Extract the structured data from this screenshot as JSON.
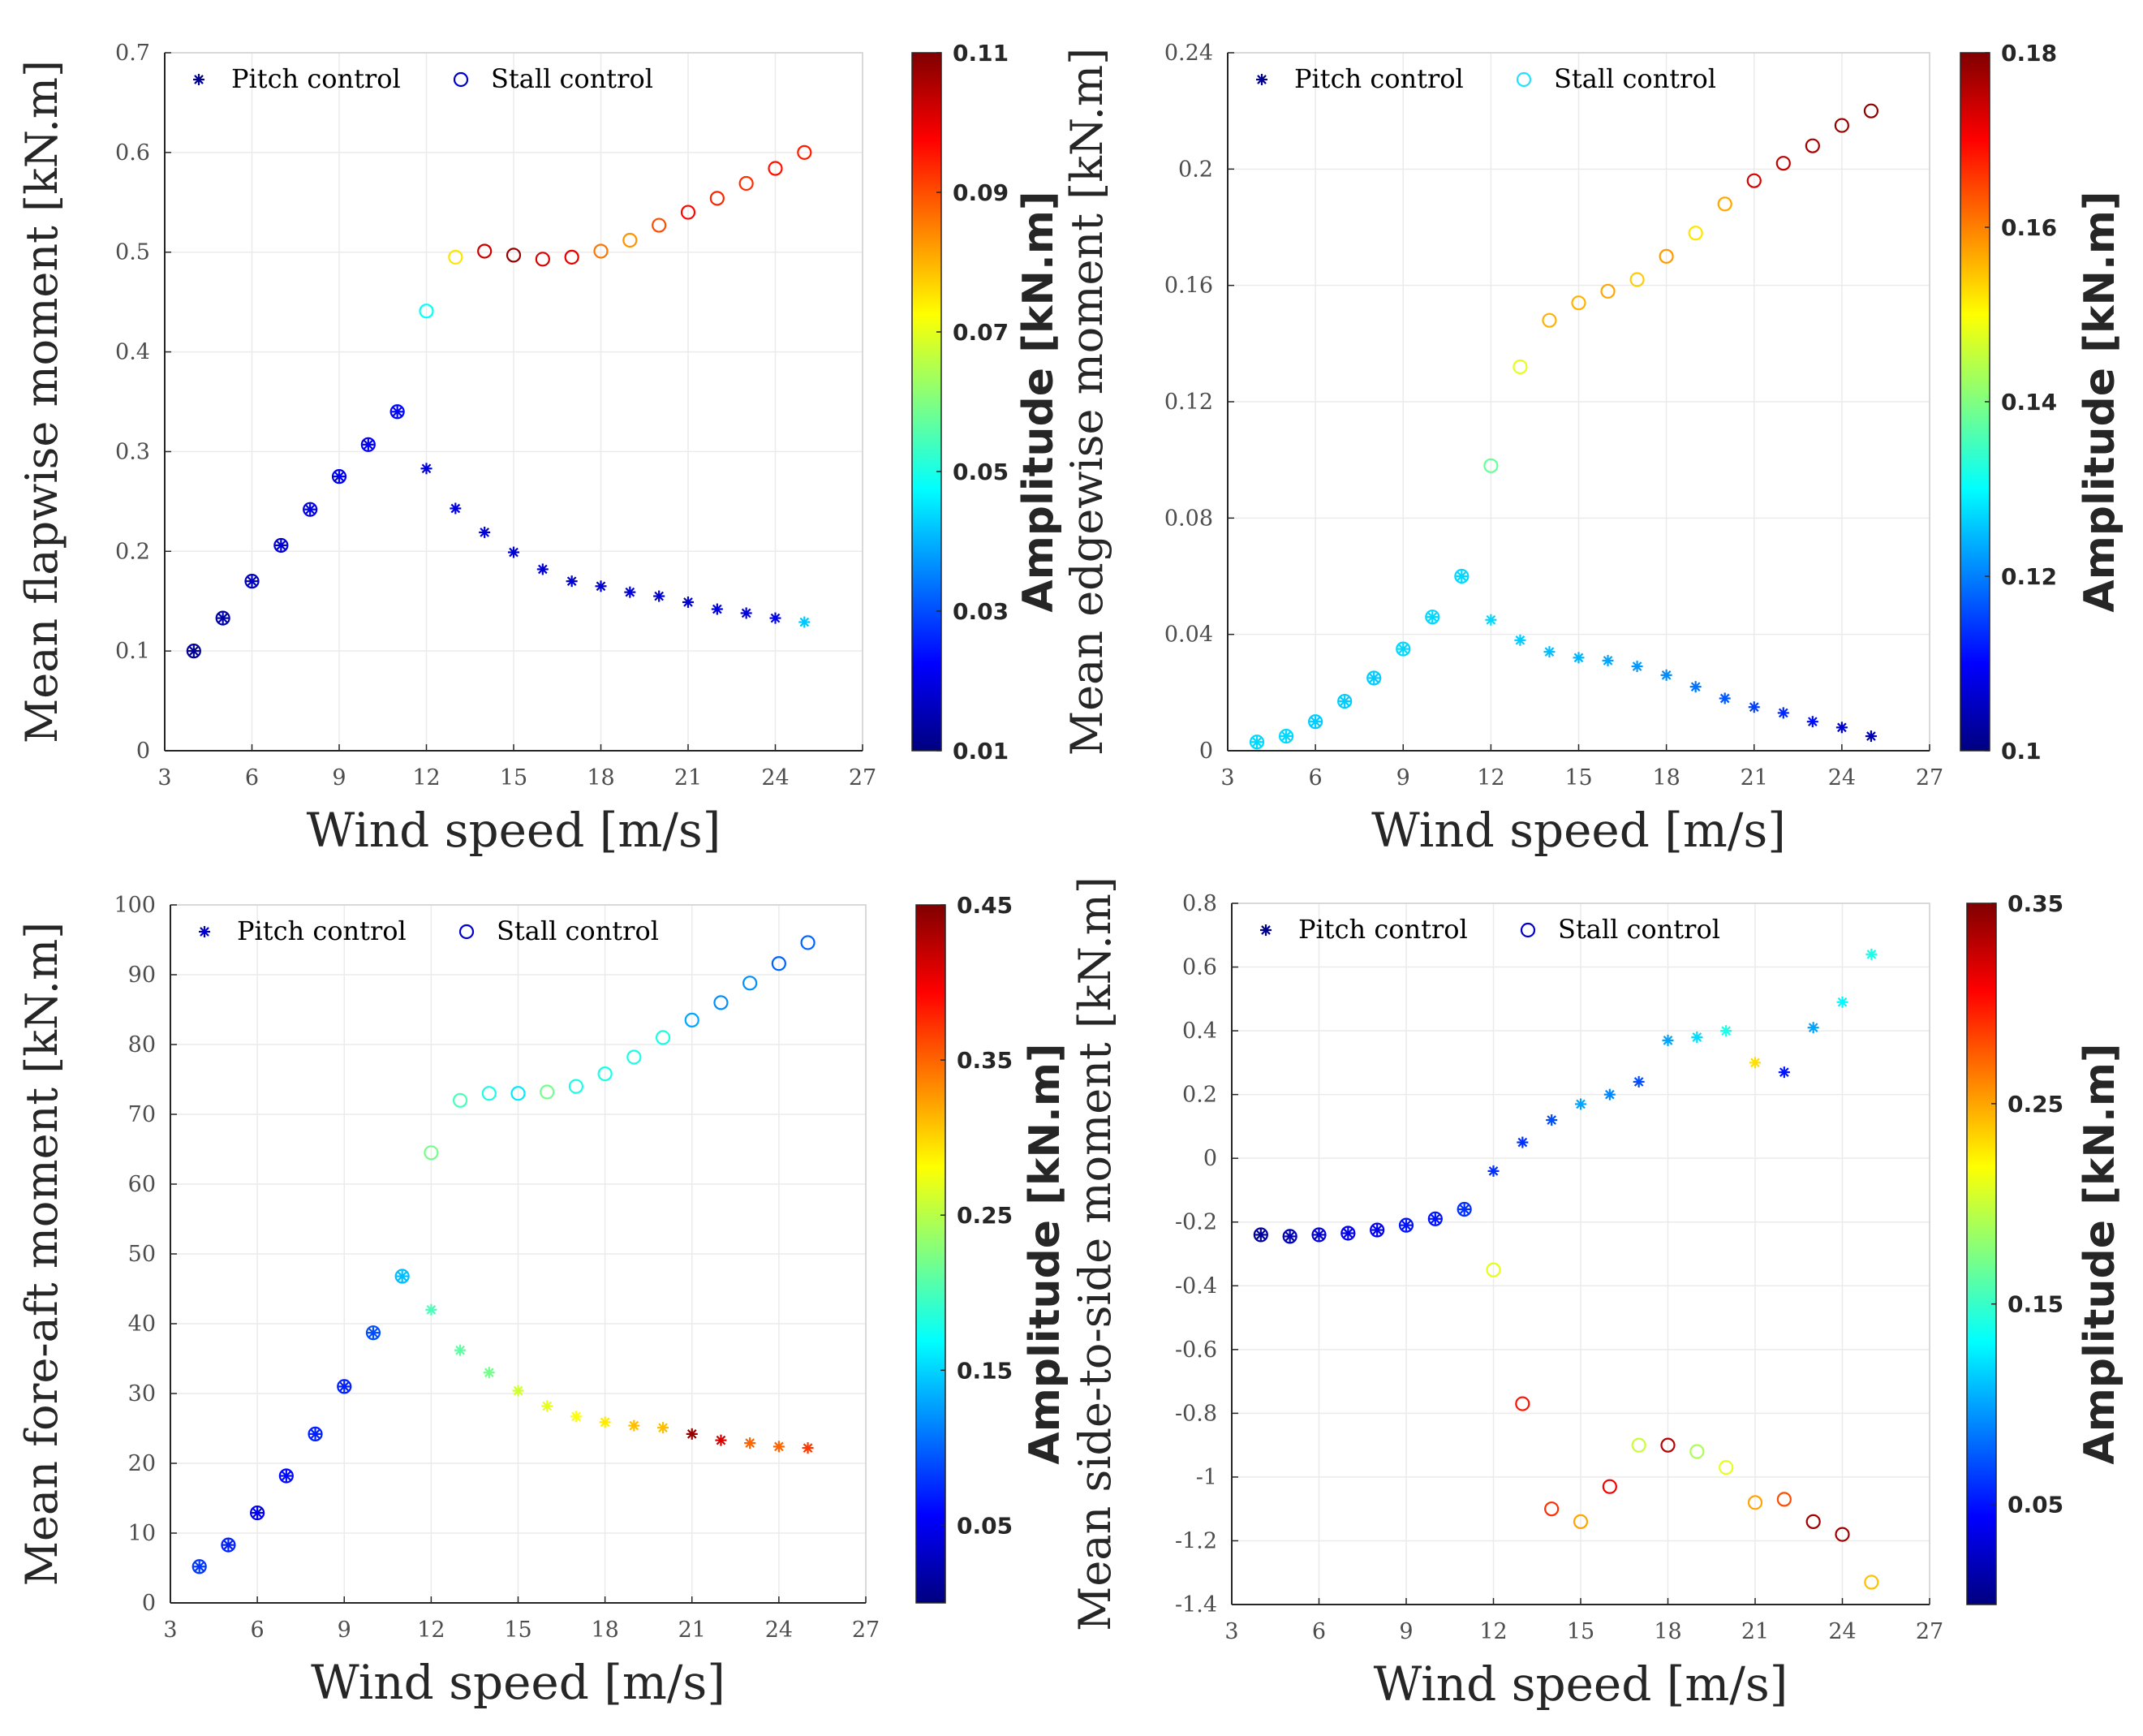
{
  "figure": {
    "background": "#ffffff",
    "grid_color": "#ebebeb",
    "axis_color": "#262626"
  },
  "chart_data": [
    {
      "type": "scatter",
      "title": "",
      "xlabel": "Wind speed [m/s]",
      "ylabel": "Mean flapwise moment [kN.m]",
      "xlim": [
        3,
        27
      ],
      "ylim": [
        0,
        0.7
      ],
      "xticks": [
        3,
        6,
        9,
        12,
        15,
        18,
        21,
        24,
        27
      ],
      "xtick_labels": [
        "3",
        "6",
        "9",
        "12",
        "15",
        "18",
        "21",
        "24",
        "27"
      ],
      "yticks": [
        0,
        0.1,
        0.2,
        0.3,
        0.4,
        0.5,
        0.6,
        0.7
      ],
      "ytick_labels": [
        "0",
        "0.1",
        "0.2",
        "0.3",
        "0.4",
        "0.5",
        "0.6",
        "0.7"
      ],
      "grid": true,
      "legend": {
        "position": "top-left",
        "pitch_label": "Pitch control",
        "stall_label": "Stall control",
        "pitch_color": "#00008f",
        "stall_color": "#0000cc"
      },
      "colorbar": {
        "label": "Amplitude [kN.m]",
        "range": [
          0.01,
          0.11
        ],
        "ticks": [
          0.01,
          0.03,
          0.05,
          0.07,
          0.09,
          0.11
        ],
        "tick_labels": [
          "0.01",
          "0.03",
          "0.05",
          "0.07",
          "0.09",
          "0.11"
        ]
      },
      "series": [
        {
          "name": "Pitch control",
          "marker": "asterisk",
          "x": [
            4,
            5,
            6,
            7,
            8,
            9,
            10,
            11,
            12,
            13,
            14,
            15,
            16,
            17,
            18,
            19,
            20,
            21,
            22,
            23,
            24,
            25
          ],
          "y": [
            0.1,
            0.133,
            0.17,
            0.206,
            0.242,
            0.275,
            0.307,
            0.34,
            0.283,
            0.243,
            0.219,
            0.199,
            0.182,
            0.17,
            0.165,
            0.159,
            0.155,
            0.149,
            0.142,
            0.138,
            0.133,
            0.129
          ],
          "amplitude": [
            0.012,
            0.014,
            0.016,
            0.018,
            0.02,
            0.021,
            0.022,
            0.023,
            0.02,
            0.019,
            0.019,
            0.018,
            0.018,
            0.018,
            0.018,
            0.018,
            0.018,
            0.018,
            0.019,
            0.02,
            0.022,
            0.042
          ]
        },
        {
          "name": "Stall control",
          "marker": "circle",
          "x": [
            4,
            5,
            6,
            7,
            8,
            9,
            10,
            11,
            12,
            13,
            14,
            15,
            16,
            17,
            18,
            19,
            20,
            21,
            22,
            23,
            24,
            25
          ],
          "y": [
            0.1,
            0.133,
            0.17,
            0.206,
            0.242,
            0.275,
            0.307,
            0.34,
            0.441,
            0.495,
            0.501,
            0.497,
            0.493,
            0.495,
            0.501,
            0.512,
            0.527,
            0.54,
            0.554,
            0.569,
            0.584,
            0.6
          ],
          "amplitude": [
            0.012,
            0.014,
            0.016,
            0.018,
            0.02,
            0.021,
            0.022,
            0.023,
            0.048,
            0.075,
            0.103,
            0.108,
            0.101,
            0.1,
            0.086,
            0.083,
            0.09,
            0.097,
            0.094,
            0.093,
            0.096,
            0.095
          ]
        }
      ]
    },
    {
      "type": "scatter",
      "title": "",
      "xlabel": "Wind speed [m/s]",
      "ylabel": "Mean edgewise moment [kN.m]",
      "xlim": [
        3,
        27
      ],
      "ylim": [
        0,
        0.24
      ],
      "xticks": [
        3,
        6,
        9,
        12,
        15,
        18,
        21,
        24,
        27
      ],
      "xtick_labels": [
        "3",
        "6",
        "9",
        "12",
        "15",
        "18",
        "21",
        "24",
        "27"
      ],
      "yticks": [
        0,
        0.04,
        0.08,
        0.12,
        0.16,
        0.2,
        0.24
      ],
      "ytick_labels": [
        "0",
        "0.04",
        "0.08",
        "0.12",
        "0.16",
        "0.2",
        "0.24"
      ],
      "grid": true,
      "legend": {
        "position": "top-left",
        "pitch_label": "Pitch control",
        "stall_label": "Stall control",
        "pitch_color": "#00008f",
        "stall_color": "#22e0ff"
      },
      "colorbar": {
        "label": "Amplitude [kN.m]",
        "range": [
          0.1,
          0.18
        ],
        "ticks": [
          0.1,
          0.12,
          0.14,
          0.16,
          0.18
        ],
        "tick_labels": [
          "0.1",
          "0.12",
          "0.14",
          "0.16",
          "0.18"
        ]
      },
      "series": [
        {
          "name": "Pitch control",
          "marker": "asterisk",
          "x": [
            4,
            5,
            6,
            7,
            8,
            9,
            10,
            11,
            12,
            13,
            14,
            15,
            16,
            17,
            18,
            19,
            20,
            21,
            22,
            23,
            24,
            25
          ],
          "y": [
            0.003,
            0.005,
            0.01,
            0.017,
            0.025,
            0.035,
            0.046,
            0.06,
            0.045,
            0.038,
            0.034,
            0.032,
            0.031,
            0.029,
            0.026,
            0.022,
            0.018,
            0.015,
            0.013,
            0.01,
            0.008,
            0.005
          ],
          "amplitude": [
            0.127,
            0.127,
            0.126,
            0.126,
            0.126,
            0.127,
            0.127,
            0.127,
            0.127,
            0.126,
            0.125,
            0.124,
            0.123,
            0.122,
            0.121,
            0.119,
            0.117,
            0.115,
            0.113,
            0.111,
            0.106,
            0.104
          ]
        },
        {
          "name": "Stall control",
          "marker": "circle",
          "x": [
            4,
            5,
            6,
            7,
            8,
            9,
            10,
            11,
            12,
            13,
            14,
            15,
            16,
            17,
            18,
            19,
            20,
            21,
            22,
            23,
            24,
            25
          ],
          "y": [
            0.003,
            0.005,
            0.01,
            0.017,
            0.025,
            0.035,
            0.046,
            0.06,
            0.098,
            0.132,
            0.148,
            0.154,
            0.158,
            0.162,
            0.17,
            0.178,
            0.188,
            0.196,
            0.202,
            0.208,
            0.215,
            0.22
          ],
          "amplitude": [
            0.127,
            0.127,
            0.126,
            0.126,
            0.126,
            0.127,
            0.127,
            0.127,
            0.138,
            0.148,
            0.156,
            0.156,
            0.157,
            0.154,
            0.158,
            0.152,
            0.157,
            0.173,
            0.175,
            0.177,
            0.178,
            0.179
          ]
        }
      ]
    },
    {
      "type": "scatter",
      "title": "",
      "xlabel": "Wind speed [m/s]",
      "ylabel": "Mean fore-aft moment [kN.m]",
      "xlim": [
        3,
        27
      ],
      "ylim": [
        0,
        100
      ],
      "xticks": [
        3,
        6,
        9,
        12,
        15,
        18,
        21,
        24,
        27
      ],
      "xtick_labels": [
        "3",
        "6",
        "9",
        "12",
        "15",
        "18",
        "21",
        "24",
        "27"
      ],
      "yticks": [
        0,
        10,
        20,
        30,
        40,
        50,
        60,
        70,
        80,
        90,
        100
      ],
      "ytick_labels": [
        "0",
        "10",
        "20",
        "30",
        "40",
        "50",
        "60",
        "70",
        "80",
        "90",
        "100"
      ],
      "grid": true,
      "legend": {
        "position": "top-left",
        "pitch_label": "Pitch control",
        "stall_label": "Stall control",
        "pitch_color": "#0000cc",
        "stall_color": "#0000cc"
      },
      "colorbar": {
        "label": "Amplitude [kN.m]",
        "range": [
          0,
          0.45
        ],
        "ticks": [
          0.05,
          0.15,
          0.25,
          0.35,
          0.45
        ],
        "tick_labels": [
          "0.05",
          "0.15",
          "0.25",
          "0.35",
          "0.45"
        ]
      },
      "series": [
        {
          "name": "Pitch control",
          "marker": "asterisk",
          "x": [
            4,
            5,
            6,
            7,
            8,
            9,
            10,
            11,
            12,
            13,
            14,
            15,
            16,
            17,
            18,
            19,
            20,
            21,
            22,
            23,
            24,
            25
          ],
          "y": [
            5.2,
            8.3,
            12.9,
            18.2,
            24.2,
            31.0,
            38.7,
            46.8,
            42.0,
            36.2,
            33.0,
            30.4,
            28.2,
            26.7,
            25.9,
            25.4,
            25.1,
            24.2,
            23.3,
            22.9,
            22.4,
            22.2
          ],
          "amplitude": [
            0.08,
            0.07,
            0.05,
            0.06,
            0.07,
            0.07,
            0.09,
            0.14,
            0.2,
            0.21,
            0.22,
            0.26,
            0.27,
            0.28,
            0.29,
            0.31,
            0.31,
            0.44,
            0.41,
            0.35,
            0.35,
            0.37
          ]
        },
        {
          "name": "Stall control",
          "marker": "circle",
          "x": [
            4,
            5,
            6,
            7,
            8,
            9,
            10,
            11,
            12,
            13,
            14,
            15,
            16,
            17,
            18,
            19,
            20,
            21,
            22,
            23,
            24,
            25
          ],
          "y": [
            5.2,
            8.3,
            12.9,
            18.2,
            24.2,
            31.0,
            38.7,
            46.8,
            64.5,
            72.0,
            73.0,
            73.0,
            73.2,
            74.0,
            75.8,
            78.2,
            81.0,
            83.5,
            86.0,
            88.8,
            91.6,
            94.6
          ],
          "amplitude": [
            0.08,
            0.07,
            0.05,
            0.06,
            0.07,
            0.07,
            0.09,
            0.14,
            0.22,
            0.2,
            0.18,
            0.16,
            0.22,
            0.18,
            0.18,
            0.18,
            0.18,
            0.13,
            0.12,
            0.12,
            0.1,
            0.1
          ]
        }
      ]
    },
    {
      "type": "scatter",
      "title": "",
      "xlabel": "Wind speed [m/s]",
      "ylabel": "Mean side-to-side moment [kN.m]",
      "xlim": [
        3,
        27
      ],
      "ylim": [
        -1.4,
        0.8
      ],
      "xticks": [
        3,
        6,
        9,
        12,
        15,
        18,
        21,
        24,
        27
      ],
      "xtick_labels": [
        "3",
        "6",
        "9",
        "12",
        "15",
        "18",
        "21",
        "24",
        "27"
      ],
      "yticks": [
        -1.4,
        -1.2,
        -1,
        -0.8,
        -0.6,
        -0.4,
        -0.2,
        0,
        0.2,
        0.4,
        0.6,
        0.8
      ],
      "ytick_labels": [
        "-1.4",
        "-1.2",
        "-1",
        "-0.8",
        "-0.6",
        "-0.4",
        "-0.2",
        "0",
        "0.2",
        "0.4",
        "0.6",
        "0.8"
      ],
      "grid": true,
      "legend": {
        "position": "top-left",
        "pitch_label": "Pitch control",
        "stall_label": "Stall control",
        "pitch_color": "#00008f",
        "stall_color": "#0000cc"
      },
      "colorbar": {
        "label": "Amplitude [kN.m]",
        "range": [
          0,
          0.35
        ],
        "ticks": [
          0.05,
          0.15,
          0.25,
          0.35
        ],
        "tick_labels": [
          "0.05",
          "0.15",
          "0.25",
          "0.35"
        ]
      },
      "series": [
        {
          "name": "Pitch control",
          "marker": "asterisk",
          "x": [
            4,
            5,
            6,
            7,
            8,
            9,
            10,
            11,
            12,
            13,
            14,
            15,
            16,
            17,
            18,
            19,
            20,
            21,
            22,
            23,
            24,
            25
          ],
          "y": [
            -0.24,
            -0.245,
            -0.24,
            -0.235,
            -0.225,
            -0.21,
            -0.19,
            -0.16,
            -0.04,
            0.05,
            0.12,
            0.17,
            0.2,
            0.24,
            0.37,
            0.38,
            0.4,
            0.3,
            0.27,
            0.41,
            0.49,
            0.64
          ],
          "amplitude": [
            0.01,
            0.02,
            0.03,
            0.04,
            0.04,
            0.05,
            0.05,
            0.06,
            0.06,
            0.06,
            0.07,
            0.1,
            0.09,
            0.07,
            0.1,
            0.12,
            0.14,
            0.23,
            0.05,
            0.1,
            0.13,
            0.14
          ]
        },
        {
          "name": "Stall control",
          "marker": "circle",
          "x": [
            4,
            5,
            6,
            7,
            8,
            9,
            10,
            11,
            12,
            13,
            14,
            15,
            16,
            17,
            18,
            19,
            20,
            21,
            22,
            23,
            24,
            25
          ],
          "y": [
            -0.24,
            -0.245,
            -0.24,
            -0.235,
            -0.225,
            -0.21,
            -0.19,
            -0.16,
            -0.35,
            -0.77,
            -1.1,
            -1.14,
            -1.03,
            -0.9,
            -0.9,
            -0.92,
            -0.97,
            -1.08,
            -1.07,
            -1.14,
            -1.18,
            -1.33
          ],
          "amplitude": [
            0.01,
            0.02,
            0.03,
            0.04,
            0.04,
            0.05,
            0.05,
            0.06,
            0.21,
            0.3,
            0.29,
            0.25,
            0.31,
            0.2,
            0.33,
            0.19,
            0.21,
            0.25,
            0.28,
            0.34,
            0.34,
            0.24
          ]
        }
      ]
    }
  ]
}
